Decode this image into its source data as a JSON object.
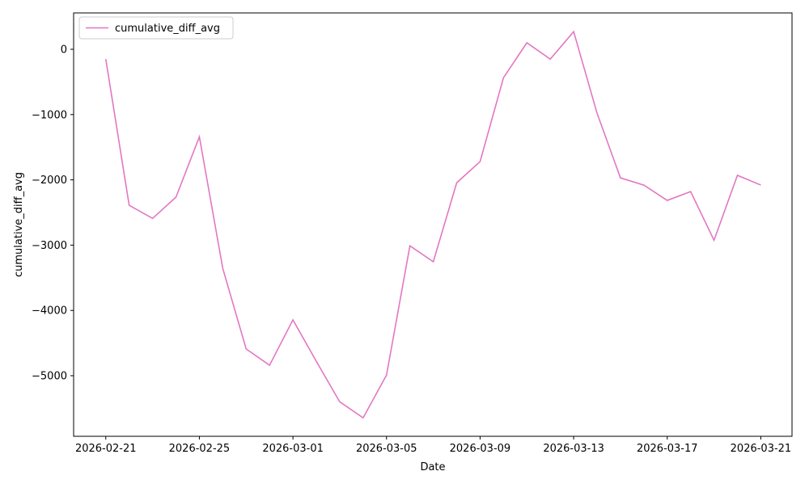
{
  "chart_data": {
    "type": "line",
    "xlabel": "Date",
    "ylabel": "cumulative_diff_avg",
    "x": [
      "2026-02-21",
      "2026-02-22",
      "2026-02-23",
      "2026-02-24",
      "2026-02-25",
      "2026-02-26",
      "2026-02-27",
      "2026-02-28",
      "2026-03-01",
      "2026-03-02",
      "2026-03-03",
      "2026-03-04",
      "2026-03-05",
      "2026-03-06",
      "2026-03-07",
      "2026-03-08",
      "2026-03-09",
      "2026-03-10",
      "2026-03-11",
      "2026-03-12",
      "2026-03-13",
      "2026-03-14",
      "2026-03-15",
      "2026-03-16",
      "2026-03-17",
      "2026-03-18",
      "2026-03-19",
      "2026-03-20",
      "2026-03-21"
    ],
    "series": [
      {
        "name": "cumulative_diff_avg",
        "color": "#e377c2",
        "values": [
          -150,
          -2390,
          -2590,
          -2265,
          -1340,
          -3355,
          -4590,
          -4840,
          -4145,
          -4780,
          -5400,
          -5645,
          -4990,
          -3010,
          -3255,
          -2045,
          -1720,
          -435,
          100,
          -150,
          270,
          -980,
          -1970,
          -2080,
          -2315,
          -2180,
          -2925,
          -1930,
          -2080
        ]
      }
    ],
    "xlim": [
      "2026-02-19T15:00",
      "2026-03-22T08:00"
    ],
    "xticks": [
      "2026-02-21",
      "2026-02-25",
      "2026-03-01",
      "2026-03-05",
      "2026-03-09",
      "2026-03-13",
      "2026-03-17",
      "2026-03-21"
    ],
    "ylim": [
      -5928,
      557
    ],
    "yticks": [
      {
        "value": -5000,
        "label": "−5000"
      },
      {
        "value": -4000,
        "label": "−4000"
      },
      {
        "value": -3000,
        "label": "−3000"
      },
      {
        "value": -2000,
        "label": "−2000"
      },
      {
        "value": -1000,
        "label": "−1000"
      },
      0
    ],
    "legend": "upper left",
    "grid": false
  }
}
